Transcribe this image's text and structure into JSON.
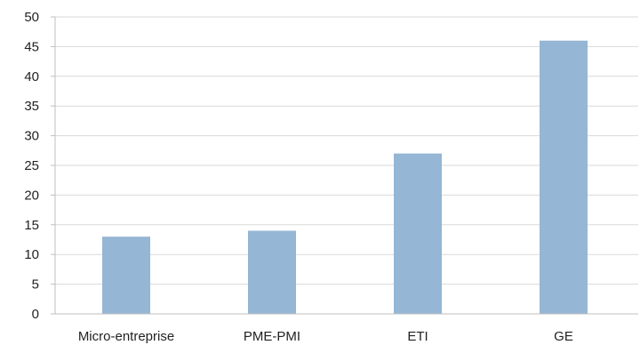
{
  "chart_data": {
    "type": "bar",
    "categories": [
      "Micro-entreprise",
      "PME-PMI",
      "ETI",
      "GE"
    ],
    "values": [
      13,
      14,
      27,
      46
    ],
    "title": "",
    "xlabel": "",
    "ylabel": "",
    "ylim": [
      0,
      50
    ],
    "yticks": [
      "0",
      "5",
      "10",
      "15",
      "20",
      "25",
      "30",
      "35",
      "40",
      "45",
      "50"
    ],
    "grid": true,
    "legend": "none",
    "bar_color": "#95b6d4",
    "grid_color": "#d9d9d9",
    "axis_color": "#bfbfbf"
  }
}
